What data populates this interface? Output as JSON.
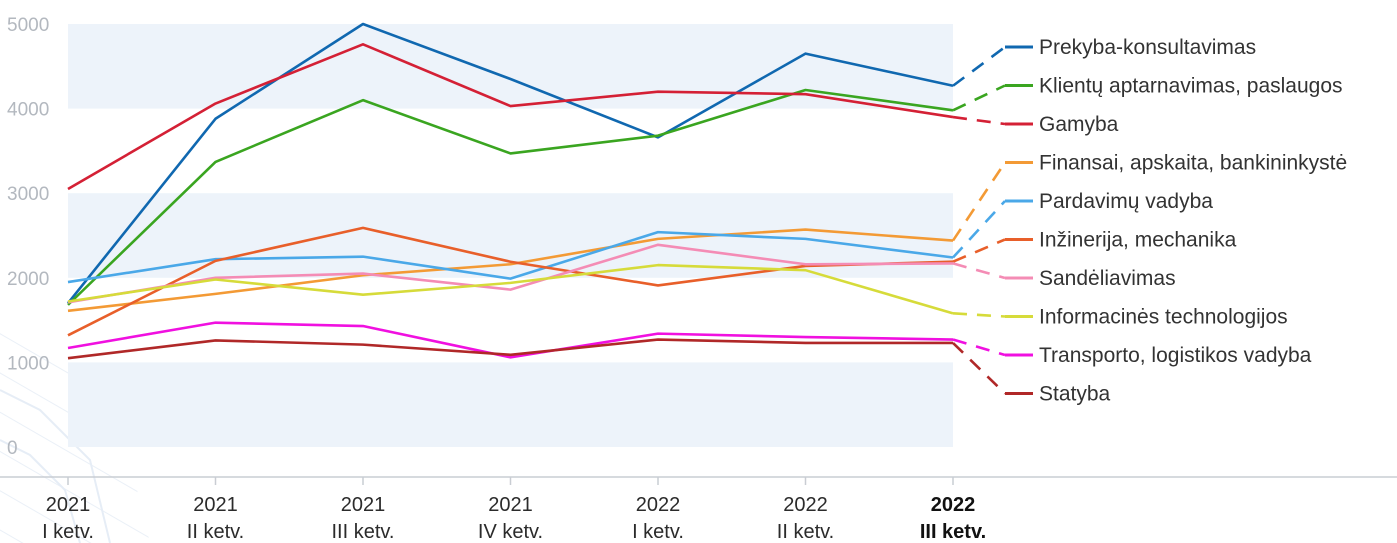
{
  "chart_data": {
    "type": "line",
    "categories": [
      [
        "2021",
        "I ketv."
      ],
      [
        "2021",
        "II ketv."
      ],
      [
        "2021",
        "III ketv."
      ],
      [
        "2021",
        "IV ketv."
      ],
      [
        "2022",
        "I ketv."
      ],
      [
        "2022",
        "II ketv."
      ],
      [
        "2022",
        "III ketv."
      ]
    ],
    "highlighted_category_index": 6,
    "ylim": [
      0,
      5000
    ],
    "yticks": [
      "0",
      "1000",
      "2000",
      "3000",
      "4000",
      "5000"
    ],
    "grid": "alternating horizontal bands",
    "legend_placement": "right",
    "series": [
      {
        "name": "Prekyba-konsultavimas",
        "color": "#1068b0",
        "values": [
          1700,
          3880,
          5000,
          4350,
          3660,
          4650,
          4270
        ]
      },
      {
        "name": "Klientų aptarnavimas, paslaugos",
        "color": "#3aa520",
        "values": [
          1680,
          3370,
          4100,
          3470,
          3680,
          4220,
          3980
        ]
      },
      {
        "name": "Gamyba",
        "color": "#d42035",
        "values": [
          3050,
          4060,
          4760,
          4030,
          4200,
          4170,
          3900
        ]
      },
      {
        "name": "Finansai, apskaita, bankininkystė",
        "color": "#f39a35",
        "values": [
          1610,
          1810,
          2030,
          2160,
          2460,
          2570,
          2440
        ]
      },
      {
        "name": "Pardavimų vadyba",
        "color": "#4aa8e8",
        "values": [
          1950,
          2220,
          2250,
          1990,
          2540,
          2460,
          2240
        ]
      },
      {
        "name": "Inžinerija, mechanika",
        "color": "#e85f2a",
        "values": [
          1320,
          2200,
          2590,
          2190,
          1910,
          2140,
          2190
        ]
      },
      {
        "name": "Sandėliavimas",
        "color": "#f48cb5",
        "values": [
          1710,
          2000,
          2050,
          1860,
          2390,
          2160,
          2170
        ]
      },
      {
        "name": "Informacinės technologijos",
        "color": "#d6db3a",
        "values": [
          1720,
          1980,
          1800,
          1940,
          2150,
          2090,
          1580
        ]
      },
      {
        "name": "Transporto, logistikos vadyba",
        "color": "#f010e0",
        "values": [
          1170,
          1470,
          1430,
          1060,
          1340,
          1300,
          1270
        ]
      },
      {
        "name": "Statyba",
        "color": "#b02828",
        "values": [
          1050,
          1260,
          1210,
          1090,
          1270,
          1230,
          1230
        ]
      }
    ]
  }
}
